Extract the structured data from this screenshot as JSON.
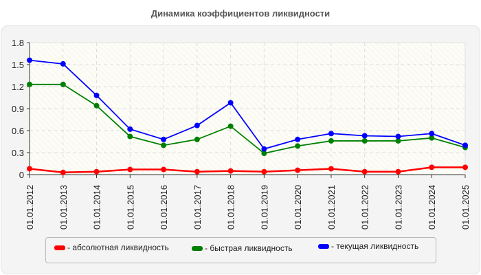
{
  "chart_data": {
    "type": "line",
    "title": "Динамика коэффициентов ликвидности",
    "xlabel": "",
    "ylabel": "",
    "ylim": [
      0,
      1.8
    ],
    "yticks": [
      "0",
      "0.3",
      "0.6",
      "0.9",
      "1.2",
      "1.5",
      "1.8"
    ],
    "grid": true,
    "legend_position": "bottom",
    "categories": [
      "01.01.2012",
      "01.01.2013",
      "01.01.2014",
      "01.01.2015",
      "01.01.2016",
      "01.01.2017",
      "01.01.2018",
      "01.01.2019",
      "01.01.2020",
      "01.01.2021",
      "01.01.2022",
      "01.01.2023",
      "01.01.2024",
      "01.01.2025"
    ],
    "series": [
      {
        "name": "- абсолютная ликвидность",
        "color": "#ff0000",
        "values": [
          0.08,
          0.03,
          0.04,
          0.07,
          0.07,
          0.04,
          0.05,
          0.04,
          0.06,
          0.08,
          0.04,
          0.04,
          0.1,
          0.1
        ]
      },
      {
        "name": "- быстрая ликвидность",
        "color": "#008000",
        "values": [
          1.23,
          1.23,
          0.94,
          0.52,
          0.4,
          0.48,
          0.66,
          0.29,
          0.39,
          0.46,
          0.46,
          0.46,
          0.5,
          0.37
        ]
      },
      {
        "name": "- текущая ликвидность",
        "color": "#0000ff",
        "values": [
          1.56,
          1.51,
          1.08,
          0.62,
          0.48,
          0.67,
          0.98,
          0.35,
          0.48,
          0.56,
          0.53,
          0.52,
          0.56,
          0.4
        ]
      }
    ]
  },
  "legend": {
    "items": [
      {
        "label": "- абсолютная ликвидность",
        "color": "#ff0000"
      },
      {
        "label": "- быстрая ликвидность",
        "color": "#008000"
      },
      {
        "label": "- текущая ликвидность",
        "color": "#0000ff"
      }
    ]
  }
}
